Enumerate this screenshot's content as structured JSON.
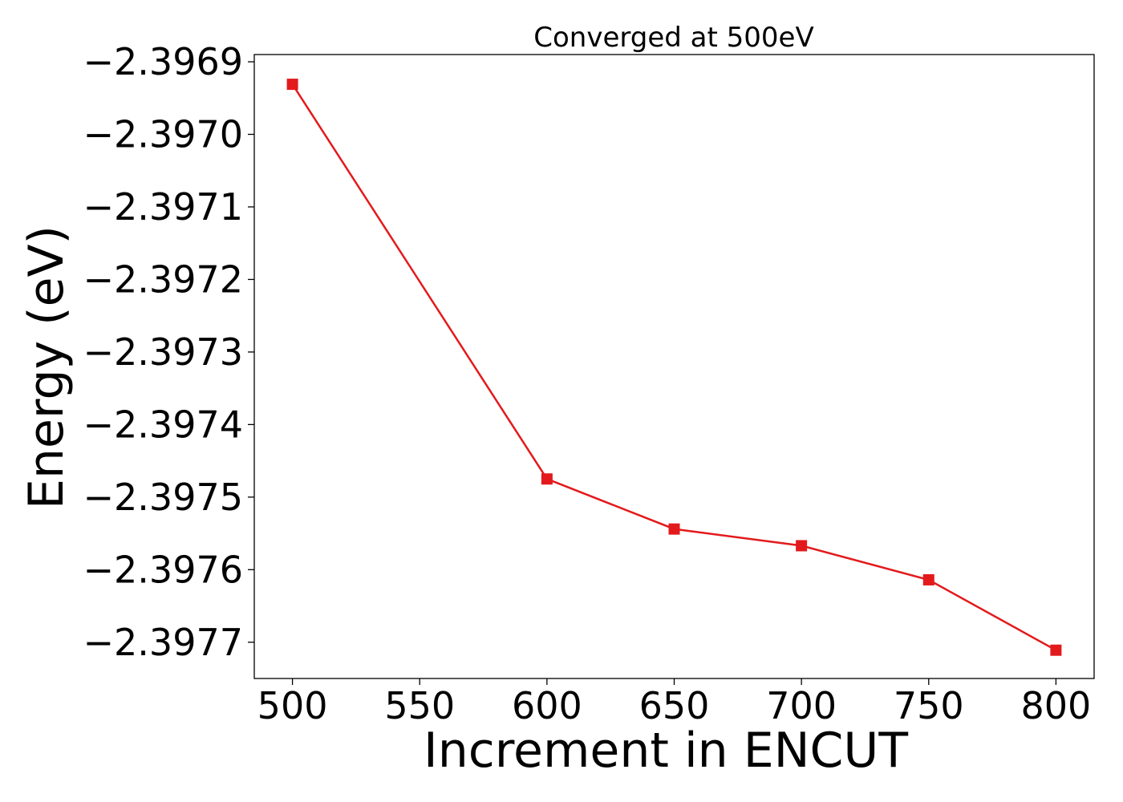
{
  "chart_data": {
    "type": "line",
    "title": "Converged at 500eV",
    "xlabel": "Increment in ENCUT",
    "ylabel": "Energy (eV)",
    "xlim": [
      485,
      815
    ],
    "ylim": [
      -2.39775,
      -2.39689
    ],
    "x_ticks": [
      500,
      550,
      600,
      650,
      700,
      750,
      800
    ],
    "x_tick_labels": [
      "500",
      "550",
      "600",
      "650",
      "700",
      "750",
      "800"
    ],
    "y_ticks": [
      -2.3969,
      -2.397,
      -2.3971,
      -2.3972,
      -2.3973,
      -2.3974,
      -2.3975,
      -2.3976,
      -2.3977
    ],
    "y_tick_labels": [
      "−2.3969",
      "−2.3970",
      "−2.3971",
      "−2.3972",
      "−2.3973",
      "−2.3974",
      "−2.3975",
      "−2.3976",
      "−2.3977"
    ],
    "grid": false,
    "legend": "none",
    "series": [
      {
        "color": "#e31a1c",
        "marker": "square",
        "x": [
          500,
          600,
          650,
          700,
          750,
          800
        ],
        "y": [
          -2.396931,
          -2.397475,
          -2.397544,
          -2.397567,
          -2.397614,
          -2.397711
        ]
      }
    ]
  }
}
